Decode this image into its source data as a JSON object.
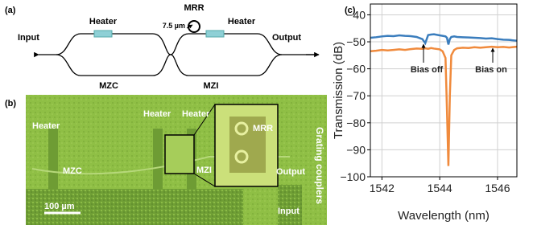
{
  "panel_a": {
    "label": "(a)",
    "heater_left": "Heater",
    "mrr": "MRR",
    "ring_size": "7.5 µm",
    "heater_right": "Heater",
    "input": "Input",
    "output": "Output",
    "mzc": "MZC",
    "mzi": "MZI"
  },
  "panel_b": {
    "label": "(b)",
    "heater_1": "Heater",
    "heater_2": "Heater",
    "heater_3": "Heater",
    "mrr": "MRR",
    "mzc": "MZC",
    "mzi": "MZI",
    "output": "Output",
    "grating": "Grating couplers",
    "scale": "100 µm",
    "input": "Input"
  },
  "chart_data": {
    "type": "line",
    "panel_label": "(c)",
    "xlabel": "Wavelength (nm)",
    "ylabel": "Transmission (dB)",
    "x": [
      1541.6,
      1541.8,
      1542.0,
      1542.2,
      1542.4,
      1542.6,
      1542.8,
      1543.0,
      1543.2,
      1543.4,
      1543.5,
      1543.6,
      1543.7,
      1543.8,
      1544.0,
      1544.1,
      1544.2,
      1544.25,
      1544.3,
      1544.35,
      1544.4,
      1544.5,
      1544.6,
      1544.8,
      1545.0,
      1545.2,
      1545.4,
      1545.6,
      1545.8,
      1546.0,
      1546.2,
      1546.4,
      1546.67
    ],
    "series": [
      {
        "name": "Bias off",
        "color": "#3a7dbd",
        "values": [
          -48.5,
          -48.3,
          -48.0,
          -47.8,
          -47.9,
          -47.6,
          -47.8,
          -47.9,
          -48.2,
          -49.0,
          -50.5,
          -47.5,
          -47.3,
          -47.2,
          -47.6,
          -47.8,
          -48.0,
          -48.5,
          -51.0,
          -49.0,
          -48.2,
          -48.0,
          -48.2,
          -48.3,
          -48.4,
          -48.5,
          -48.6,
          -48.8,
          -48.7,
          -49.0,
          -49.2,
          -49.3,
          -49.6
        ]
      },
      {
        "name": "Bias on",
        "color": "#f08a3c",
        "values": [
          -53.5,
          -53.3,
          -53.0,
          -53.2,
          -53.0,
          -52.8,
          -53.0,
          -52.7,
          -52.5,
          -52.6,
          -52.4,
          -52.6,
          -52.3,
          -52.5,
          -52.8,
          -53.5,
          -56.0,
          -75.0,
          -96.0,
          -70.0,
          -55.0,
          -53.0,
          -52.4,
          -52.2,
          -52.3,
          -52.0,
          -52.2,
          -52.0,
          -51.8,
          -52.0,
          -51.9,
          -52.1,
          -51.8
        ]
      }
    ],
    "xlim": [
      1541.6,
      1546.67
    ],
    "xticks": [
      1542,
      1544,
      1546
    ],
    "ylim": [
      -100,
      -36
    ],
    "yticks": [
      {
        "value": -100,
        "label": "−100"
      },
      {
        "value": -90,
        "label": "−90"
      },
      {
        "value": -80,
        "label": "−80"
      },
      {
        "value": -70,
        "label": "−70"
      },
      {
        "value": -60,
        "label": "−60"
      },
      {
        "value": -50,
        "label": "−50"
      },
      {
        "value": -40,
        "label": "−40"
      }
    ],
    "grid": true
  }
}
